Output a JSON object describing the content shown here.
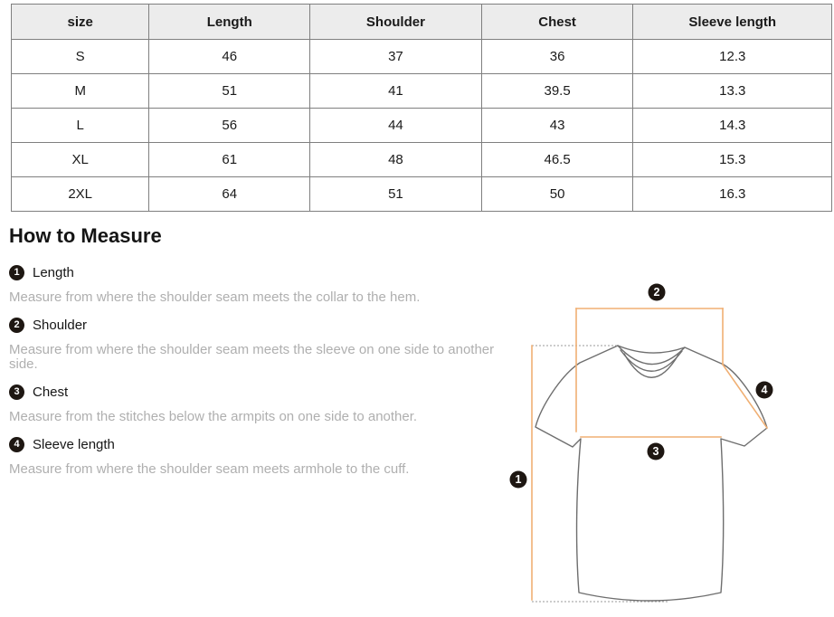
{
  "size_chart": {
    "columns": [
      "size",
      "Length",
      "Shoulder",
      "Chest",
      "Sleeve length"
    ],
    "rows": [
      [
        "S",
        "46",
        "37",
        "36",
        "12.3"
      ],
      [
        "M",
        "51",
        "41",
        "39.5",
        "13.3"
      ],
      [
        "L",
        "56",
        "44",
        "43",
        "14.3"
      ],
      [
        "XL",
        "61",
        "48",
        "46.5",
        "15.3"
      ],
      [
        "2XL",
        "64",
        "51",
        "50",
        "16.3"
      ]
    ]
  },
  "how_to_measure": {
    "title": "How to Measure",
    "items": [
      {
        "number": "1",
        "label": "Length",
        "description": "Measure from where the shoulder seam meets the collar to the hem."
      },
      {
        "number": "2",
        "label": "Shoulder",
        "description": "Measure from where the shoulder seam meets the sleeve on one side to another side."
      },
      {
        "number": "3",
        "label": "Chest",
        "description": "Measure from the stitches below the armpits on one side to another."
      },
      {
        "number": "4",
        "label": "Sleeve length",
        "description": "Measure from where the shoulder seam meets armhole to the cuff."
      }
    ]
  },
  "diagram": {
    "badges": [
      "1",
      "2",
      "3",
      "4"
    ]
  },
  "colors": {
    "header_bg": "#ececec",
    "table_border": "#7f7f7f",
    "text": "#1a1a1a",
    "muted_text": "#afafaf",
    "badge": "#1e1712",
    "measure_line": "#f0af73",
    "shirt_outline": "#6e6e6e",
    "dotted_line": "#9a9a9a"
  }
}
